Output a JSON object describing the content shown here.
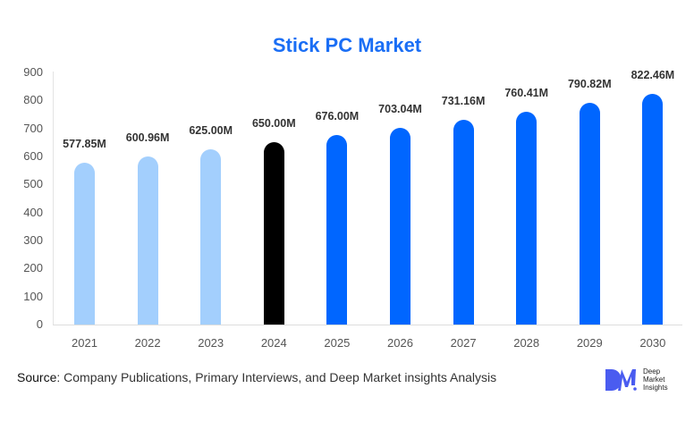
{
  "chart_data": {
    "type": "bar",
    "title": "Stick PC Market",
    "xlabel": "",
    "ylabel": "",
    "ylim": [
      0,
      900
    ],
    "yticks": [
      0,
      100,
      200,
      300,
      400,
      500,
      600,
      700,
      800,
      900
    ],
    "categories": [
      "2021",
      "2022",
      "2023",
      "2024",
      "2025",
      "2026",
      "2027",
      "2028",
      "2029",
      "2030"
    ],
    "values": [
      577.85,
      600.96,
      625.0,
      650.0,
      676.0,
      703.04,
      731.16,
      760.41,
      790.82,
      822.46
    ],
    "labels": [
      "577.85M",
      "600.96M",
      "625.00M",
      "650.00M",
      "676.00M",
      "703.04M",
      "731.16M",
      "760.41M",
      "790.82M",
      "822.46M"
    ],
    "bar_colors": [
      "#a3cffd",
      "#a3cffd",
      "#a3cffd",
      "#000000",
      "#0066ff",
      "#0066ff",
      "#0066ff",
      "#0066ff",
      "#0066ff",
      "#0066ff"
    ],
    "grid": false,
    "legend": null
  },
  "colors": {
    "title": "#1a6ef5",
    "historical": "#a3cffd",
    "base_year": "#000000",
    "forecast": "#0066ff",
    "logo": "#4a5cf0"
  },
  "footer": {
    "source_label": "Source",
    "source_text": ": Company Publications, Primary Interviews, and Deep Market insights Analysis"
  },
  "logo": {
    "mark": "DM",
    "line1": "Deep",
    "line2": "Market",
    "line3": "Insights"
  }
}
